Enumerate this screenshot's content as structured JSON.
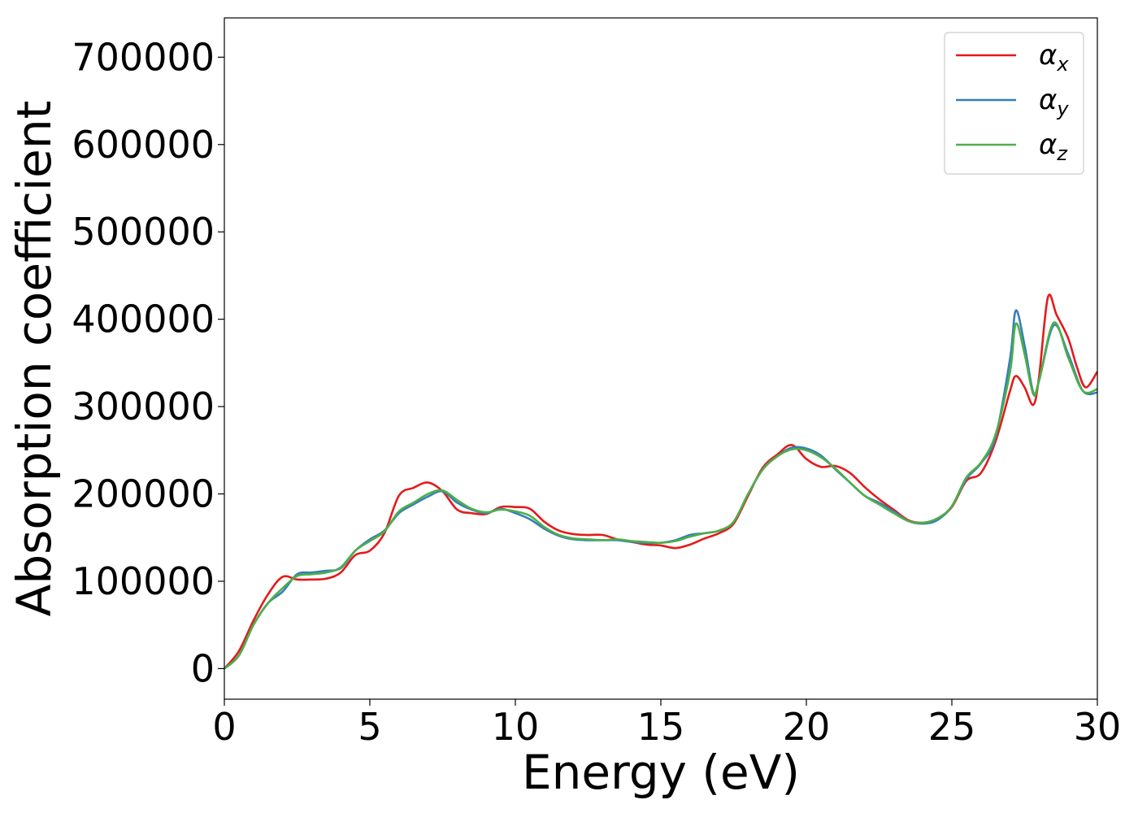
{
  "chart_data": {
    "type": "line",
    "xlabel": "Energy (eV)",
    "ylabel": "Absorption coefficient",
    "xlim": [
      0,
      30
    ],
    "ylim": [
      -35000,
      745000
    ],
    "xticks": [
      "0",
      "5",
      "10",
      "15",
      "20",
      "25",
      "30"
    ],
    "yticks": [
      "0",
      "100000",
      "200000",
      "300000",
      "400000",
      "500000",
      "600000",
      "700000"
    ],
    "grid": false,
    "legend_position": "top-right",
    "legend": [
      {
        "symbol": "α",
        "subscript": "x",
        "color": "#e41a1c"
      },
      {
        "symbol": "α",
        "subscript": "y",
        "color": "#377eb8"
      },
      {
        "symbol": "α",
        "subscript": "z",
        "color": "#4daf4a"
      }
    ],
    "series": [
      {
        "name": "α_x",
        "color": "#e41a1c",
        "points": [
          [
            0,
            0
          ],
          [
            0.5,
            20000
          ],
          [
            1,
            55000
          ],
          [
            1.5,
            85000
          ],
          [
            2,
            105000
          ],
          [
            2.5,
            102000
          ],
          [
            3,
            102000
          ],
          [
            3.5,
            103000
          ],
          [
            4,
            110000
          ],
          [
            4.5,
            130000
          ],
          [
            5,
            135000
          ],
          [
            5.5,
            155000
          ],
          [
            6,
            198000
          ],
          [
            6.5,
            207000
          ],
          [
            7,
            213000
          ],
          [
            7.5,
            203000
          ],
          [
            8,
            182000
          ],
          [
            8.5,
            178000
          ],
          [
            9,
            177000
          ],
          [
            9.5,
            185000
          ],
          [
            10,
            185000
          ],
          [
            10.5,
            183000
          ],
          [
            11,
            168000
          ],
          [
            11.5,
            158000
          ],
          [
            12,
            154000
          ],
          [
            12.5,
            153000
          ],
          [
            13,
            153000
          ],
          [
            13.5,
            148000
          ],
          [
            14,
            145000
          ],
          [
            14.5,
            142000
          ],
          [
            15,
            141000
          ],
          [
            15.5,
            138000
          ],
          [
            16,
            142000
          ],
          [
            16.5,
            149000
          ],
          [
            17,
            155000
          ],
          [
            17.5,
            166000
          ],
          [
            18,
            198000
          ],
          [
            18.5,
            230000
          ],
          [
            19,
            245000
          ],
          [
            19.5,
            256000
          ],
          [
            20,
            240000
          ],
          [
            20.5,
            231000
          ],
          [
            21,
            232000
          ],
          [
            21.5,
            224000
          ],
          [
            22,
            208000
          ],
          [
            22.5,
            194000
          ],
          [
            23,
            182000
          ],
          [
            23.5,
            170000
          ],
          [
            24,
            167000
          ],
          [
            24.5,
            171000
          ],
          [
            25,
            185000
          ],
          [
            25.5,
            215000
          ],
          [
            26,
            224000
          ],
          [
            26.5,
            260000
          ],
          [
            27,
            318000
          ],
          [
            27.2,
            335000
          ],
          [
            27.5,
            322000
          ],
          [
            27.8,
            302000
          ],
          [
            28,
            335000
          ],
          [
            28.3,
            425000
          ],
          [
            28.6,
            405000
          ],
          [
            29,
            378000
          ],
          [
            29.3,
            345000
          ],
          [
            29.6,
            322000
          ],
          [
            30,
            340000
          ]
        ]
      },
      {
        "name": "α_y",
        "color": "#377eb8",
        "points": [
          [
            0,
            0
          ],
          [
            0.5,
            15000
          ],
          [
            1,
            50000
          ],
          [
            1.5,
            75000
          ],
          [
            2,
            88000
          ],
          [
            2.5,
            108000
          ],
          [
            3,
            110000
          ],
          [
            3.5,
            112000
          ],
          [
            4,
            115000
          ],
          [
            4.5,
            135000
          ],
          [
            5,
            148000
          ],
          [
            5.5,
            158000
          ],
          [
            6,
            178000
          ],
          [
            6.5,
            188000
          ],
          [
            7,
            197000
          ],
          [
            7.5,
            203000
          ],
          [
            8,
            190000
          ],
          [
            8.5,
            182000
          ],
          [
            9,
            178000
          ],
          [
            9.5,
            183000
          ],
          [
            10,
            178000
          ],
          [
            10.5,
            171000
          ],
          [
            11,
            160000
          ],
          [
            11.5,
            152000
          ],
          [
            12,
            148000
          ],
          [
            12.5,
            147000
          ],
          [
            13,
            147000
          ],
          [
            13.5,
            147000
          ],
          [
            14,
            145000
          ],
          [
            14.5,
            144000
          ],
          [
            15,
            144000
          ],
          [
            15.5,
            147000
          ],
          [
            16,
            153000
          ],
          [
            16.5,
            155000
          ],
          [
            17,
            158000
          ],
          [
            17.5,
            168000
          ],
          [
            18,
            200000
          ],
          [
            18.5,
            228000
          ],
          [
            19,
            243000
          ],
          [
            19.5,
            253000
          ],
          [
            20,
            252000
          ],
          [
            20.5,
            244000
          ],
          [
            21,
            228000
          ],
          [
            21.5,
            213000
          ],
          [
            22,
            198000
          ],
          [
            22.5,
            190000
          ],
          [
            23,
            180000
          ],
          [
            23.5,
            169000
          ],
          [
            24,
            166000
          ],
          [
            24.5,
            170000
          ],
          [
            25,
            186000
          ],
          [
            25.5,
            217000
          ],
          [
            26,
            235000
          ],
          [
            26.5,
            265000
          ],
          [
            27,
            355000
          ],
          [
            27.2,
            410000
          ],
          [
            27.5,
            370000
          ],
          [
            27.8,
            316000
          ],
          [
            28,
            330000
          ],
          [
            28.5,
            393000
          ],
          [
            29,
            360000
          ],
          [
            29.5,
            318000
          ],
          [
            30,
            316000
          ]
        ]
      },
      {
        "name": "α_z",
        "color": "#4daf4a",
        "points": [
          [
            0,
            0
          ],
          [
            0.5,
            15000
          ],
          [
            1,
            50000
          ],
          [
            1.5,
            75000
          ],
          [
            2,
            92000
          ],
          [
            2.5,
            106000
          ],
          [
            3,
            108000
          ],
          [
            3.5,
            110000
          ],
          [
            4,
            116000
          ],
          [
            4.5,
            135000
          ],
          [
            5,
            146000
          ],
          [
            5.5,
            157000
          ],
          [
            6,
            180000
          ],
          [
            6.5,
            190000
          ],
          [
            7,
            200000
          ],
          [
            7.5,
            204000
          ],
          [
            8,
            193000
          ],
          [
            8.5,
            183000
          ],
          [
            9,
            179000
          ],
          [
            9.5,
            182000
          ],
          [
            10,
            180000
          ],
          [
            10.5,
            175000
          ],
          [
            11,
            162000
          ],
          [
            11.5,
            153000
          ],
          [
            12,
            149000
          ],
          [
            12.5,
            148000
          ],
          [
            13,
            147000
          ],
          [
            13.5,
            148000
          ],
          [
            14,
            146000
          ],
          [
            14.5,
            145000
          ],
          [
            15,
            144000
          ],
          [
            15.5,
            146000
          ],
          [
            16,
            151000
          ],
          [
            16.5,
            155000
          ],
          [
            17,
            158000
          ],
          [
            17.5,
            168000
          ],
          [
            18,
            200000
          ],
          [
            18.5,
            228000
          ],
          [
            19,
            243000
          ],
          [
            19.5,
            251000
          ],
          [
            20,
            250000
          ],
          [
            20.5,
            242000
          ],
          [
            21,
            229000
          ],
          [
            21.5,
            213000
          ],
          [
            22,
            198000
          ],
          [
            22.5,
            188000
          ],
          [
            23,
            178000
          ],
          [
            23.5,
            169000
          ],
          [
            24,
            167000
          ],
          [
            24.5,
            172000
          ],
          [
            25,
            186000
          ],
          [
            25.5,
            219000
          ],
          [
            26,
            236000
          ],
          [
            26.5,
            268000
          ],
          [
            27,
            340000
          ],
          [
            27.2,
            395000
          ],
          [
            27.5,
            360000
          ],
          [
            27.8,
            314000
          ],
          [
            28,
            330000
          ],
          [
            28.5,
            396000
          ],
          [
            29,
            356000
          ],
          [
            29.5,
            318000
          ],
          [
            30,
            320000
          ]
        ]
      }
    ]
  }
}
